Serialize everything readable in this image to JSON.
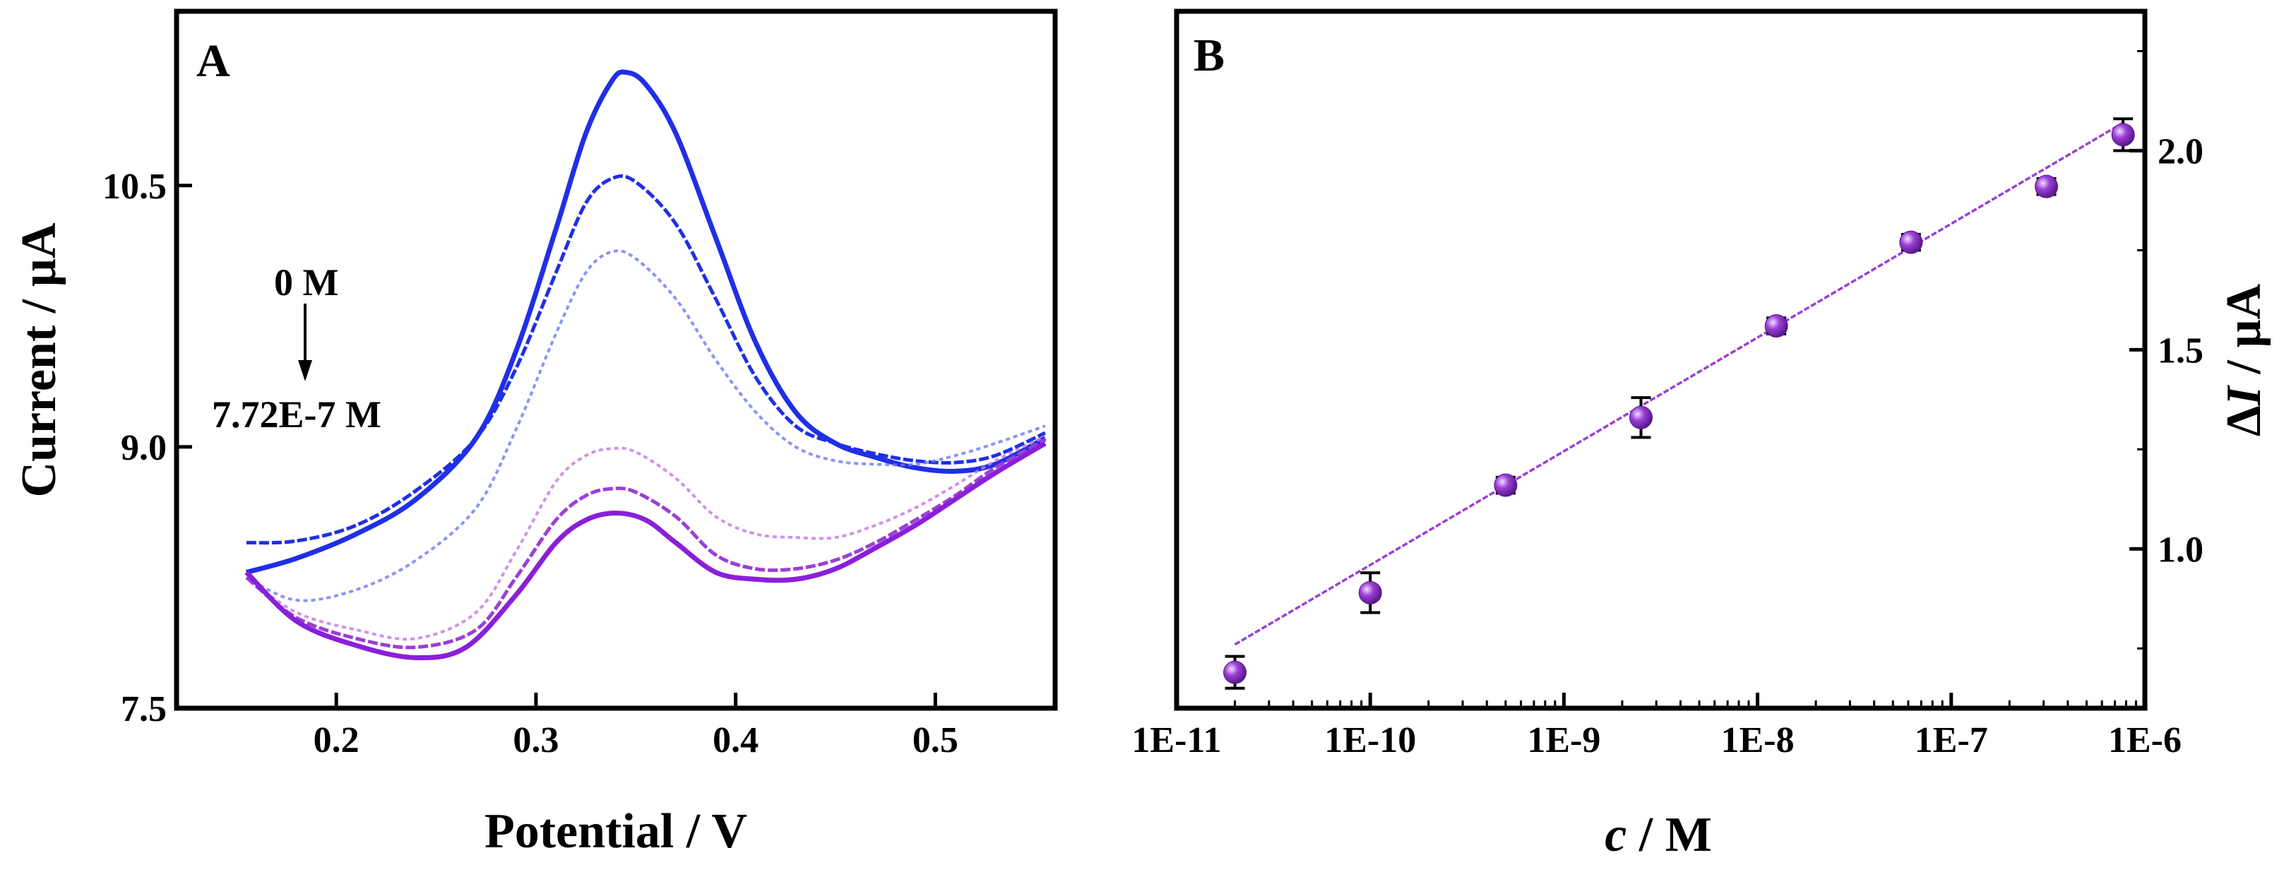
{
  "chart_data": [
    {
      "panel": "A",
      "type": "line",
      "xlabel": "Potential / V",
      "ylabel": "Current / µA",
      "xlim": [
        0.12,
        0.56
      ],
      "ylim": [
        7.5,
        11.5
      ],
      "xticks": [
        {
          "value": 0.2,
          "label": "0.2"
        },
        {
          "value": 0.3,
          "label": "0.3"
        },
        {
          "value": 0.4,
          "label": "0.4"
        },
        {
          "value": 0.5,
          "label": "0.5"
        }
      ],
      "yticks": [
        {
          "value": 7.5,
          "label": "7.5"
        },
        {
          "value": 9.0,
          "label": "9.0"
        },
        {
          "value": 10.5,
          "label": "10.5"
        }
      ],
      "annotations": {
        "top": "0 M",
        "bottom": "7.72E-7 M"
      },
      "series": [
        {
          "color": "#1f2fe6",
          "style": "solid",
          "width": 7,
          "opacity": 1,
          "values": [
            [
              0.155,
              8.28
            ],
            [
              0.18,
              8.36
            ],
            [
              0.21,
              8.5
            ],
            [
              0.24,
              8.7
            ],
            [
              0.27,
              9.05
            ],
            [
              0.29,
              9.55
            ],
            [
              0.31,
              10.25
            ],
            [
              0.325,
              10.8
            ],
            [
              0.338,
              11.1
            ],
            [
              0.345,
              11.15
            ],
            [
              0.355,
              11.08
            ],
            [
              0.37,
              10.8
            ],
            [
              0.39,
              10.2
            ],
            [
              0.41,
              9.6
            ],
            [
              0.43,
              9.2
            ],
            [
              0.45,
              9.02
            ],
            [
              0.47,
              8.94
            ],
            [
              0.49,
              8.88
            ],
            [
              0.51,
              8.86
            ],
            [
              0.53,
              8.9
            ],
            [
              0.555,
              9.05
            ]
          ]
        },
        {
          "color": "#1f2fe6",
          "style": "dashed",
          "width": 5,
          "opacity": 1,
          "values": [
            [
              0.155,
              8.45
            ],
            [
              0.18,
              8.46
            ],
            [
              0.21,
              8.55
            ],
            [
              0.24,
              8.75
            ],
            [
              0.27,
              9.05
            ],
            [
              0.29,
              9.45
            ],
            [
              0.31,
              10.0
            ],
            [
              0.325,
              10.4
            ],
            [
              0.338,
              10.54
            ],
            [
              0.35,
              10.52
            ],
            [
              0.37,
              10.28
            ],
            [
              0.39,
              9.85
            ],
            [
              0.41,
              9.4
            ],
            [
              0.43,
              9.12
            ],
            [
              0.45,
              9.02
            ],
            [
              0.47,
              8.96
            ],
            [
              0.49,
              8.92
            ],
            [
              0.51,
              8.91
            ],
            [
              0.53,
              8.95
            ],
            [
              0.555,
              9.08
            ]
          ]
        },
        {
          "color": "#6d79f2",
          "style": "dotted",
          "width": 4,
          "opacity": 0.8,
          "values": [
            [
              0.155,
              8.25
            ],
            [
              0.18,
              8.12
            ],
            [
              0.21,
              8.18
            ],
            [
              0.24,
              8.35
            ],
            [
              0.27,
              8.65
            ],
            [
              0.29,
              9.1
            ],
            [
              0.31,
              9.65
            ],
            [
              0.325,
              10.0
            ],
            [
              0.338,
              10.12
            ],
            [
              0.35,
              10.08
            ],
            [
              0.37,
              9.85
            ],
            [
              0.39,
              9.5
            ],
            [
              0.41,
              9.2
            ],
            [
              0.43,
              9.0
            ],
            [
              0.45,
              8.92
            ],
            [
              0.47,
              8.9
            ],
            [
              0.49,
              8.9
            ],
            [
              0.51,
              8.95
            ],
            [
              0.53,
              9.02
            ],
            [
              0.555,
              9.12
            ]
          ]
        },
        {
          "color": "#c87ee6",
          "style": "dotted",
          "width": 4,
          "opacity": 0.85,
          "values": [
            [
              0.155,
              8.25
            ],
            [
              0.18,
              8.05
            ],
            [
              0.21,
              7.95
            ],
            [
              0.24,
              7.9
            ],
            [
              0.27,
              8.05
            ],
            [
              0.29,
              8.4
            ],
            [
              0.31,
              8.8
            ],
            [
              0.325,
              8.95
            ],
            [
              0.338,
              8.99
            ],
            [
              0.35,
              8.97
            ],
            [
              0.37,
              8.82
            ],
            [
              0.39,
              8.6
            ],
            [
              0.41,
              8.5
            ],
            [
              0.43,
              8.48
            ],
            [
              0.45,
              8.48
            ],
            [
              0.47,
              8.55
            ],
            [
              0.49,
              8.65
            ],
            [
              0.51,
              8.78
            ],
            [
              0.53,
              8.92
            ],
            [
              0.555,
              9.06
            ]
          ]
        },
        {
          "color": "#9b3fd6",
          "style": "dashed",
          "width": 5,
          "opacity": 1,
          "values": [
            [
              0.155,
              8.25
            ],
            [
              0.18,
              8.02
            ],
            [
              0.21,
              7.9
            ],
            [
              0.24,
              7.85
            ],
            [
              0.27,
              7.95
            ],
            [
              0.29,
              8.25
            ],
            [
              0.31,
              8.58
            ],
            [
              0.325,
              8.72
            ],
            [
              0.338,
              8.76
            ],
            [
              0.35,
              8.74
            ],
            [
              0.37,
              8.6
            ],
            [
              0.39,
              8.38
            ],
            [
              0.41,
              8.3
            ],
            [
              0.43,
              8.3
            ],
            [
              0.45,
              8.35
            ],
            [
              0.47,
              8.45
            ],
            [
              0.49,
              8.58
            ],
            [
              0.51,
              8.72
            ],
            [
              0.53,
              8.88
            ],
            [
              0.555,
              9.04
            ]
          ]
        },
        {
          "color": "#8a1fd8",
          "style": "solid",
          "width": 7,
          "opacity": 1,
          "values": [
            [
              0.155,
              8.28
            ],
            [
              0.18,
              8.0
            ],
            [
              0.21,
              7.86
            ],
            [
              0.24,
              7.79
            ],
            [
              0.265,
              7.85
            ],
            [
              0.29,
              8.15
            ],
            [
              0.31,
              8.45
            ],
            [
              0.325,
              8.58
            ],
            [
              0.34,
              8.62
            ],
            [
              0.355,
              8.58
            ],
            [
              0.37,
              8.45
            ],
            [
              0.39,
              8.28
            ],
            [
              0.41,
              8.24
            ],
            [
              0.43,
              8.24
            ],
            [
              0.45,
              8.3
            ],
            [
              0.47,
              8.42
            ],
            [
              0.49,
              8.55
            ],
            [
              0.51,
              8.7
            ],
            [
              0.53,
              8.85
            ],
            [
              0.555,
              9.02
            ]
          ]
        }
      ]
    },
    {
      "panel": "B",
      "type": "scatter",
      "xlabel_italic": "c",
      "xlabel_rest": " / M",
      "ylabel_italic": "I",
      "ylabel_prefix": "Δ",
      "ylabel_rest": " / µA",
      "xscale": "log",
      "xlim": [
        1e-11,
        1e-06
      ],
      "ylim": [
        0.6,
        2.35
      ],
      "xticks": [
        {
          "value": 1e-11,
          "label": "1E-11"
        },
        {
          "value": 1e-10,
          "label": "1E-10"
        },
        {
          "value": 1e-09,
          "label": "1E-9"
        },
        {
          "value": 1e-08,
          "label": "1E-8"
        },
        {
          "value": 1e-07,
          "label": "1E-7"
        },
        {
          "value": 1e-06,
          "label": "1E-6"
        }
      ],
      "yticks": [
        {
          "value": 1.0,
          "label": "1.0"
        },
        {
          "value": 1.5,
          "label": "1.5"
        },
        {
          "value": 2.0,
          "label": "2.0"
        }
      ],
      "marker_color": "#9b3fd6",
      "fit_color": "#9b3fd6",
      "points": [
        {
          "x": 2e-11,
          "y": 0.69,
          "err": 0.04
        },
        {
          "x": 1e-10,
          "y": 0.89,
          "err": 0.05
        },
        {
          "x": 5e-10,
          "y": 1.16,
          "err": 0.02
        },
        {
          "x": 2.5e-09,
          "y": 1.33,
          "err": 0.05
        },
        {
          "x": 1.25e-08,
          "y": 1.56,
          "err": 0.02
        },
        {
          "x": 6.2e-08,
          "y": 1.77,
          "err": 0.02
        },
        {
          "x": 3.1e-07,
          "y": 1.91,
          "err": 0.02
        },
        {
          "x": 7.72e-07,
          "y": 2.04,
          "err": 0.04
        }
      ],
      "fit": {
        "x": [
          2e-11,
          7.72e-07
        ],
        "y": [
          0.76,
          2.07
        ]
      }
    }
  ],
  "panel_labels": {
    "a": "A",
    "b": "B"
  }
}
